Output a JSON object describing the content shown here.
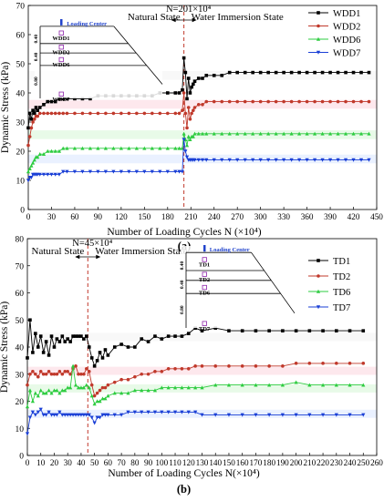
{
  "chart_data": [
    {
      "type": "line",
      "panel_label": "(a)",
      "xlabel": "Number of Loading Cycles N (×10⁴)",
      "ylabel": "Dynamic Stress (kPa)",
      "xlim": [
        0,
        450
      ],
      "ylim": [
        0,
        70
      ],
      "xticks": [
        "0",
        "30",
        "60",
        "90",
        "120",
        "150",
        "180",
        "210",
        "240",
        "270",
        "300",
        "330",
        "360",
        "390",
        "420",
        "450"
      ],
      "yticks": [
        "0",
        "10",
        "20",
        "30",
        "40",
        "50",
        "60",
        "70"
      ],
      "split_x": 201,
      "split_label": "N=201×10⁴",
      "state_left": "Natural State",
      "state_right": "Water Immersion State",
      "legend_position": "top-right",
      "inset": {
        "center_label": "Loading Center",
        "sensor_labels": [
          "WDD1",
          "WDD2",
          "WDD6",
          "WDD7"
        ],
        "depth_labels": [
          "0.40",
          "0.40",
          "0.80"
        ]
      },
      "series": [
        {
          "name": "WDD1",
          "color": "#000000",
          "marker": "square",
          "x": [
            0,
            2,
            4,
            6,
            8,
            10,
            12,
            15,
            20,
            25,
            30,
            35,
            40,
            45,
            50,
            60,
            70,
            80,
            90,
            100,
            110,
            120,
            130,
            140,
            150,
            160,
            170,
            180,
            190,
            195,
            199,
            201,
            203,
            205,
            207,
            209,
            211,
            213,
            215,
            220,
            225,
            230,
            240,
            250,
            260,
            270,
            280,
            290,
            300,
            310,
            320,
            330,
            340,
            350,
            360,
            370,
            380,
            390,
            400,
            410,
            420,
            430,
            440
          ],
          "y": [
            28,
            33,
            31,
            34,
            33,
            35,
            34,
            35,
            36,
            37,
            37,
            37,
            38,
            38,
            38,
            38,
            38,
            38,
            39,
            39,
            39,
            39,
            39,
            39,
            39,
            39,
            40,
            40,
            40,
            40,
            41,
            52,
            47,
            38,
            45,
            40,
            42,
            43,
            44,
            45,
            45,
            46,
            46,
            46,
            47,
            47,
            47,
            47,
            47,
            47,
            47,
            47,
            47,
            47,
            47,
            47,
            47,
            47,
            47,
            47,
            47,
            47,
            47
          ]
        },
        {
          "name": "WDD2",
          "color": "#c0392b",
          "marker": "circle",
          "x": [
            0,
            2,
            4,
            6,
            8,
            10,
            12,
            15,
            20,
            25,
            30,
            35,
            40,
            45,
            50,
            60,
            70,
            80,
            90,
            100,
            110,
            120,
            130,
            140,
            150,
            160,
            170,
            180,
            190,
            195,
            199,
            201,
            203,
            205,
            207,
            209,
            211,
            213,
            215,
            220,
            225,
            230,
            240,
            250,
            260,
            270,
            280,
            290,
            300,
            310,
            320,
            330,
            340,
            350,
            360,
            370,
            380,
            390,
            400,
            410,
            420,
            430,
            440
          ],
          "y": [
            22,
            25,
            28,
            30,
            31,
            32,
            32,
            33,
            33,
            33,
            33,
            33,
            33,
            33,
            33,
            33,
            33,
            33,
            33,
            33,
            33,
            33,
            33,
            33,
            33,
            33,
            33,
            33,
            33,
            33,
            34,
            40,
            33,
            28,
            35,
            31,
            33,
            34,
            35,
            36,
            36,
            37,
            37,
            37,
            37,
            37,
            37,
            37,
            37,
            37,
            37,
            37,
            37,
            37,
            37,
            37,
            37,
            37,
            37,
            37,
            37,
            37,
            37
          ]
        },
        {
          "name": "WDD6",
          "color": "#2ecc40",
          "marker": "triangle",
          "x": [
            0,
            2,
            4,
            6,
            8,
            10,
            12,
            15,
            20,
            25,
            30,
            35,
            40,
            45,
            50,
            60,
            70,
            80,
            90,
            100,
            110,
            120,
            130,
            140,
            150,
            160,
            170,
            180,
            190,
            195,
            199,
            201,
            203,
            205,
            207,
            209,
            211,
            213,
            215,
            220,
            225,
            230,
            240,
            250,
            260,
            270,
            280,
            290,
            300,
            310,
            320,
            330,
            340,
            350,
            360,
            370,
            380,
            390,
            400,
            410,
            420,
            430,
            440
          ],
          "y": [
            13,
            14,
            15,
            16,
            17,
            18,
            18,
            19,
            19,
            20,
            20,
            20,
            20,
            21,
            21,
            21,
            21,
            21,
            21,
            21,
            21,
            21,
            21,
            21,
            21,
            21,
            21,
            21,
            21,
            21,
            21,
            26,
            24,
            22,
            25,
            24,
            25,
            25,
            26,
            26,
            26,
            26,
            26,
            26,
            26,
            26,
            26,
            26,
            26,
            26,
            26,
            26,
            26,
            26,
            26,
            26,
            26,
            26,
            26,
            26,
            26,
            26,
            26
          ]
        },
        {
          "name": "WDD7",
          "color": "#1a3fd6",
          "marker": "triangle-down",
          "x": [
            0,
            2,
            4,
            6,
            8,
            10,
            12,
            15,
            20,
            25,
            30,
            35,
            40,
            45,
            50,
            60,
            70,
            80,
            90,
            100,
            110,
            120,
            130,
            140,
            150,
            160,
            170,
            180,
            190,
            195,
            199,
            201,
            203,
            205,
            207,
            209,
            211,
            213,
            215,
            220,
            225,
            230,
            240,
            250,
            260,
            270,
            280,
            290,
            300,
            310,
            320,
            330,
            340,
            350,
            360,
            370,
            380,
            390,
            400,
            410,
            420,
            430,
            440
          ],
          "y": [
            10,
            11,
            11,
            12,
            12,
            12,
            12,
            12,
            12,
            12,
            12,
            12,
            12,
            13,
            13,
            13,
            13,
            13,
            13,
            13,
            13,
            13,
            13,
            13,
            13,
            13,
            13,
            13,
            13,
            13,
            13,
            24,
            20,
            18,
            17,
            17,
            17,
            17,
            17,
            17,
            17,
            17,
            17,
            17,
            17,
            17,
            17,
            17,
            17,
            17,
            17,
            17,
            17,
            17,
            17,
            17,
            17,
            17,
            17,
            17,
            17,
            17,
            17
          ]
        }
      ]
    },
    {
      "type": "line",
      "panel_label": "(b)",
      "xlabel": "Number of Loading Cycles N(×10⁴)",
      "ylabel": "Dynamic Stress (kPa)",
      "xlim": [
        0,
        260
      ],
      "ylim": [
        0,
        80
      ],
      "xticks": [
        "0",
        "10",
        "20",
        "30",
        "40",
        "50",
        "60",
        "70",
        "80",
        "90",
        "100",
        "110",
        "120",
        "130",
        "140",
        "150",
        "160",
        "170",
        "180",
        "190",
        "200",
        "210",
        "220",
        "230",
        "240",
        "250",
        "260"
      ],
      "yticks": [
        "0",
        "10",
        "20",
        "30",
        "40",
        "50",
        "60",
        "70",
        "80"
      ],
      "split_x": 45,
      "split_label": "N=45×10⁴",
      "state_left": "Natural State",
      "state_right": "Water Immersion State",
      "legend_position": "right",
      "inset": {
        "center_label": "Loading Center",
        "sensor_labels": [
          "TD1",
          "TD2",
          "TD6",
          "TD7"
        ],
        "depth_labels": [
          "0.40",
          "0.40",
          "0.80"
        ]
      },
      "series": [
        {
          "name": "TD1",
          "color": "#000000",
          "marker": "square",
          "x": [
            0,
            2,
            4,
            6,
            8,
            10,
            12,
            14,
            16,
            18,
            20,
            22,
            24,
            26,
            28,
            30,
            32,
            34,
            36,
            38,
            40,
            42,
            44,
            46,
            48,
            50,
            52,
            54,
            56,
            58,
            60,
            65,
            70,
            75,
            80,
            85,
            90,
            95,
            100,
            105,
            110,
            115,
            120,
            125,
            130,
            140,
            150,
            160,
            170,
            180,
            190,
            200,
            210,
            220,
            230,
            240,
            250
          ],
          "y": [
            36,
            50,
            38,
            45,
            40,
            44,
            38,
            42,
            37,
            44,
            40,
            43,
            42,
            44,
            42,
            43,
            42,
            44,
            44,
            44,
            44,
            43,
            44,
            40,
            36,
            33,
            35,
            38,
            36,
            39,
            37,
            40,
            41,
            40,
            40,
            43,
            42,
            44,
            43,
            44,
            44,
            44,
            45,
            47,
            46,
            47,
            46,
            46,
            46,
            46,
            46,
            46,
            46,
            46,
            46,
            46,
            46
          ]
        },
        {
          "name": "TD2",
          "color": "#c0392b",
          "marker": "circle",
          "x": [
            0,
            2,
            4,
            6,
            8,
            10,
            12,
            14,
            16,
            18,
            20,
            22,
            24,
            26,
            28,
            30,
            32,
            34,
            36,
            38,
            40,
            42,
            44,
            46,
            48,
            50,
            52,
            54,
            56,
            58,
            60,
            65,
            70,
            75,
            80,
            85,
            90,
            95,
            100,
            105,
            110,
            115,
            120,
            125,
            130,
            140,
            150,
            160,
            170,
            180,
            190,
            200,
            210,
            220,
            230,
            240,
            250
          ],
          "y": [
            26,
            30,
            31,
            30,
            29,
            31,
            30,
            30,
            31,
            30,
            30,
            30,
            31,
            30,
            31,
            31,
            30,
            32,
            33,
            30,
            30,
            30,
            32,
            31,
            26,
            22,
            23,
            24,
            25,
            25,
            26,
            27,
            28,
            28,
            29,
            30,
            30,
            31,
            31,
            32,
            32,
            32,
            32,
            33,
            33,
            33,
            33,
            33,
            33,
            33,
            33,
            34,
            34,
            34,
            34,
            34,
            34
          ]
        },
        {
          "name": "TD6",
          "color": "#2ecc40",
          "marker": "triangle",
          "x": [
            0,
            2,
            4,
            6,
            8,
            10,
            12,
            14,
            16,
            18,
            20,
            22,
            24,
            26,
            28,
            30,
            32,
            34,
            36,
            38,
            40,
            42,
            44,
            46,
            48,
            50,
            52,
            54,
            56,
            58,
            60,
            65,
            70,
            75,
            80,
            85,
            90,
            95,
            100,
            105,
            110,
            115,
            120,
            125,
            130,
            140,
            150,
            160,
            170,
            180,
            190,
            200,
            210,
            220,
            230,
            240,
            250
          ],
          "y": [
            18,
            24,
            20,
            23,
            22,
            24,
            23,
            23,
            24,
            23,
            24,
            24,
            23,
            24,
            24,
            25,
            25,
            33,
            26,
            25,
            25,
            25,
            26,
            25,
            22,
            19,
            20,
            20,
            21,
            21,
            22,
            23,
            23,
            23,
            24,
            24,
            24,
            24,
            25,
            25,
            25,
            25,
            25,
            25,
            25,
            26,
            26,
            26,
            26,
            26,
            26,
            27,
            26,
            26,
            26,
            26,
            26
          ]
        },
        {
          "name": "TD7",
          "color": "#1a3fd6",
          "marker": "triangle-down",
          "x": [
            0,
            2,
            4,
            6,
            8,
            10,
            12,
            14,
            16,
            18,
            20,
            22,
            24,
            26,
            28,
            30,
            32,
            34,
            36,
            38,
            40,
            42,
            44,
            46,
            48,
            50,
            52,
            54,
            56,
            58,
            60,
            65,
            70,
            75,
            80,
            85,
            90,
            95,
            100,
            105,
            110,
            115,
            120,
            125,
            130,
            140,
            150,
            160,
            170,
            180,
            190,
            200,
            210,
            220,
            230,
            240,
            250
          ],
          "y": [
            8,
            14,
            16,
            15,
            16,
            17,
            15,
            15,
            16,
            15,
            15,
            15,
            16,
            15,
            15,
            15,
            15,
            15,
            15,
            15,
            15,
            15,
            15,
            15,
            14,
            12,
            14,
            14,
            15,
            15,
            15,
            15,
            15,
            16,
            16,
            16,
            16,
            16,
            16,
            16,
            16,
            16,
            16,
            16,
            15,
            15,
            15,
            15,
            15,
            15,
            15,
            15,
            15,
            15,
            15,
            15,
            15
          ]
        }
      ]
    }
  ]
}
